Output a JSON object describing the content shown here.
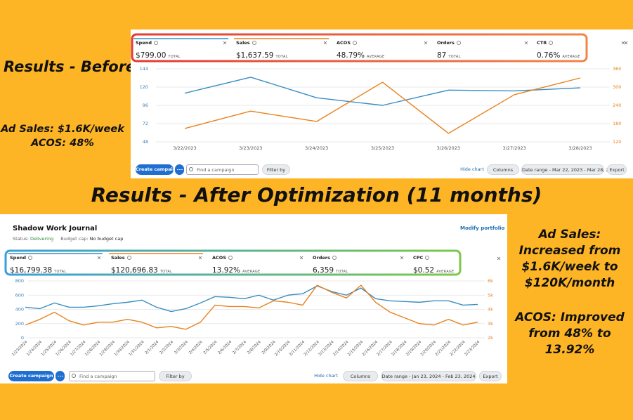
{
  "left_note": {
    "heading": "Results - Before Optimization",
    "lines": [
      "Ad Sales: $1.6K/week",
      "ACOS: 48%"
    ]
  },
  "middle_heading": "Results - After Optimization (11 months)",
  "right_note": {
    "sales": "Ad Sales: Increased from $1.6K/week to $120K/month",
    "acos": "ACOS: Improved from 48% to 13.92%"
  },
  "before_panel": {
    "metrics": [
      {
        "label": "Spend",
        "value": "$799.00",
        "note": "TOTAL"
      },
      {
        "label": "Sales",
        "value": "$1,637.59",
        "note": "TOTAL"
      },
      {
        "label": "ACOS",
        "value": "48.79%",
        "note": "AVERAGE"
      },
      {
        "label": "Orders",
        "value": "87",
        "note": "TOTAL"
      },
      {
        "label": "CTR",
        "value": "0.76%",
        "note": "AVERAGE"
      }
    ],
    "toolbar": {
      "create": "Create campaign",
      "search": "Find a campaign",
      "filter": "Filter by",
      "hide": "Hide chart",
      "columns": "Columns",
      "date_range": "Date range - Mar 22, 2023 - Mar 28, 2023",
      "export": "Export"
    }
  },
  "after_panel": {
    "title": "Shadow Work Journal",
    "status_label": "Status:",
    "status": "Delivering",
    "budget_label": "Budget cap:",
    "budget": "No budget cap",
    "link": "Modify portfolio",
    "metrics": [
      {
        "label": "Spend",
        "value": "$16,799.38",
        "note": "TOTAL"
      },
      {
        "label": "Sales",
        "value": "$120,696.83",
        "note": "TOTAL"
      },
      {
        "label": "ACOS",
        "value": "13.92%",
        "note": "AVERAGE"
      },
      {
        "label": "Orders",
        "value": "6,359",
        "note": "TOTAL"
      },
      {
        "label": "CPC",
        "value": "$0.52",
        "note": "AVERAGE"
      }
    ],
    "toolbar": {
      "create": "Create campaign",
      "search": "Find a campaign",
      "filter": "Filter by",
      "hide": "Hide chart",
      "columns": "Columns",
      "date_range": "Date range - Jan 23, 2024 - Feb 23, 2024",
      "export": "Export"
    }
  },
  "chart_data": [
    {
      "type": "line",
      "x": [
        "3/22/2023",
        "3/23/2023",
        "3/24/2023",
        "3/25/2023",
        "3/26/2023",
        "3/27/2023",
        "3/28/2023"
      ],
      "series": [
        {
          "color": "#3a8dc1",
          "axis": "y",
          "values": [
            112,
            133,
            106,
            96,
            116,
            115,
            119
          ]
        },
        {
          "color": "#e8821e",
          "axis": "y2",
          "values": [
            164,
            221,
            187,
            316,
            148,
            275,
            330
          ]
        }
      ],
      "ylim": [
        48,
        144
      ],
      "yticks": [
        48,
        72,
        96,
        120,
        144
      ],
      "y2lim": [
        120,
        360
      ],
      "y2ticks": [
        120,
        180,
        240,
        300,
        360
      ],
      "grid": true
    },
    {
      "type": "line",
      "x": [
        "1/23/2024",
        "1/24/2024",
        "1/25/2024",
        "1/26/2024",
        "1/27/2024",
        "1/28/2024",
        "1/29/2024",
        "1/30/2024",
        "1/31/2024",
        "2/1/2024",
        "2/2/2024",
        "2/3/2024",
        "2/4/2024",
        "2/5/2024",
        "2/6/2024",
        "2/7/2024",
        "2/8/2024",
        "2/9/2024",
        "2/10/2024",
        "2/11/2024",
        "2/12/2024",
        "2/13/2024",
        "2/14/2024",
        "2/15/2024",
        "2/16/2024",
        "2/17/2024",
        "2/18/2024",
        "2/19/2024",
        "2/20/2024",
        "2/21/2024",
        "2/22/2024",
        "2/23/2024"
      ],
      "series": [
        {
          "color": "#3a8dc1",
          "axis": "y",
          "values": [
            430,
            410,
            490,
            430,
            430,
            450,
            480,
            500,
            530,
            430,
            370,
            410,
            490,
            580,
            570,
            550,
            600,
            530,
            600,
            620,
            730,
            650,
            600,
            700,
            550,
            520,
            510,
            500,
            520,
            520,
            460,
            470
          ]
        },
        {
          "color": "#e8821e",
          "axis": "y2",
          "values": [
            2900,
            3300,
            3800,
            3200,
            2900,
            3100,
            3100,
            3300,
            3100,
            2700,
            2800,
            2600,
            3100,
            4300,
            4200,
            4200,
            4100,
            4600,
            4500,
            4300,
            5700,
            5200,
            4800,
            5700,
            4500,
            3800,
            3400,
            3000,
            2900,
            3300,
            2900,
            3100
          ]
        }
      ],
      "ylim": [
        0,
        800
      ],
      "yticks": [
        0,
        200,
        400,
        600,
        800
      ],
      "y2lim": [
        2000,
        6000
      ],
      "y2ticks": [
        {
          "value": 2000,
          "label": "2k"
        },
        {
          "value": 3000,
          "label": "3k"
        },
        {
          "value": 4000,
          "label": "4k"
        },
        {
          "value": 5000,
          "label": "5k"
        },
        {
          "value": 6000,
          "label": "6k"
        }
      ],
      "grid": true
    }
  ]
}
